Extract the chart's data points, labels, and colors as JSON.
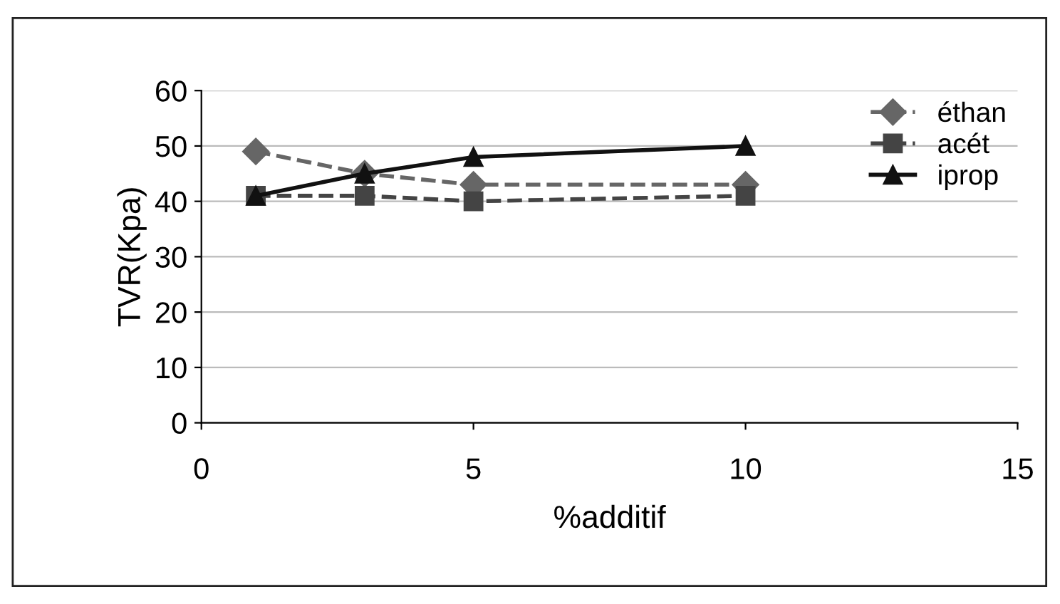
{
  "chart_data": {
    "type": "line",
    "xlabel": "%additif",
    "ylabel": "TVR(Kpa)",
    "x": [
      1,
      3,
      5,
      10
    ],
    "series": [
      {
        "name": "éthan",
        "color": "#666666",
        "values": [
          49,
          45,
          43,
          43
        ],
        "marker": "diamond",
        "line_style": "dashed"
      },
      {
        "name": "acét",
        "color": "#444444",
        "values": [
          41,
          41,
          40,
          41
        ],
        "marker": "square",
        "line_style": "dashed"
      },
      {
        "name": "iprop",
        "color": "#111111",
        "values": [
          41,
          45,
          48,
          50
        ],
        "marker": "triangle",
        "line_style": "solid"
      }
    ],
    "xlim": [
      0,
      15
    ],
    "xticks": [
      0,
      5,
      10,
      15
    ],
    "ylim": [
      0,
      60
    ],
    "yticks": [
      0,
      10,
      20,
      30,
      40,
      50,
      60
    ],
    "grid": "y",
    "legend": "top right"
  }
}
